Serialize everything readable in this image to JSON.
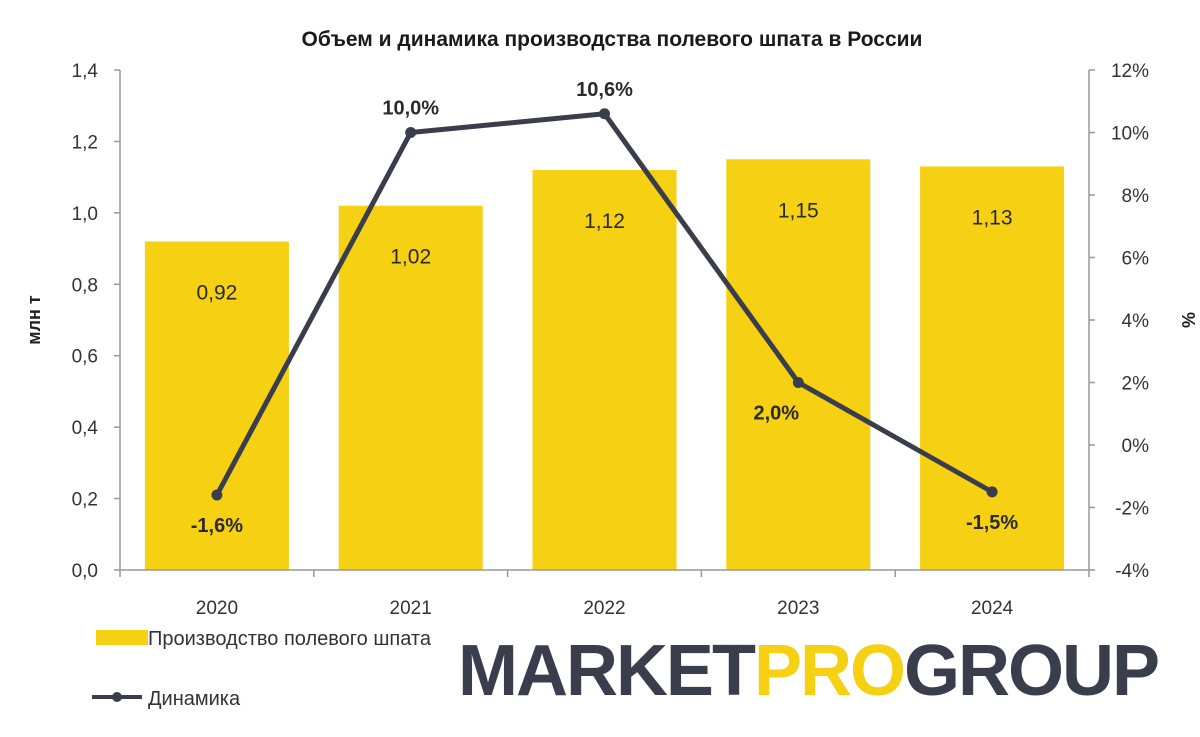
{
  "chart_data": {
    "type": "bar+line",
    "title": "Объем и динамика производства  полевого шпата в России",
    "categories": [
      "2020",
      "2021",
      "2022",
      "2023",
      "2024"
    ],
    "series": [
      {
        "name": "Производство полевого шпата",
        "type": "bar",
        "axis": "left",
        "color": "#F5D013",
        "values": [
          0.92,
          1.02,
          1.12,
          1.15,
          1.13
        ],
        "labels": [
          "0,92",
          "1,02",
          "1,12",
          "1,15",
          "1,13"
        ]
      },
      {
        "name": "Динамика",
        "type": "line",
        "axis": "right",
        "color": "#3A3D4C",
        "values": [
          -1.6,
          10.0,
          10.6,
          2.0,
          -1.5
        ],
        "labels": [
          "-1,6%",
          "10,0%",
          "10,6%",
          "2,0%",
          "-1,5%"
        ]
      }
    ],
    "ylabel": "млн т",
    "ylabel_right": "%",
    "ylim": [
      0,
      1.4
    ],
    "ylim_right": [
      -4,
      12
    ],
    "yticks": [
      "0,0",
      "0,2",
      "0,4",
      "0,6",
      "0,8",
      "1,0",
      "1,2",
      "1,4"
    ],
    "yticks_right": [
      "-4%",
      "-2%",
      "0%",
      "2%",
      "4%",
      "6%",
      "8%",
      "10%",
      "12%"
    ],
    "grid": false,
    "legend": "bottom-left"
  },
  "logo": {
    "part1": "MARKET",
    "part2": "PRO",
    "part3": "GROUP",
    "color_dark": "#3A3D4C",
    "color_accent": "#F5D013"
  }
}
